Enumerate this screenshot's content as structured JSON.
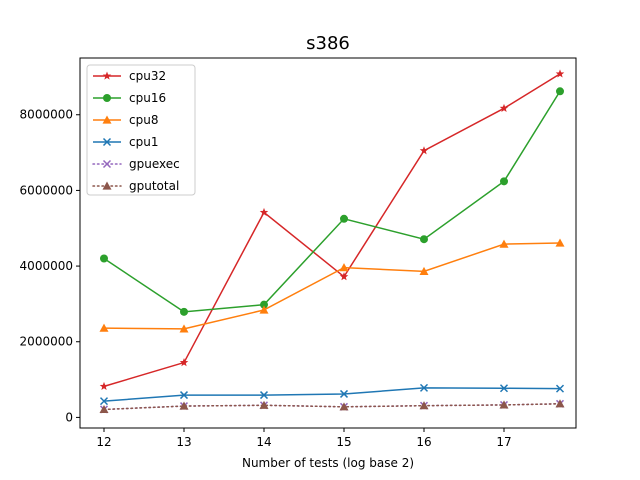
{
  "chart_data": {
    "type": "line",
    "title": "s386",
    "xlabel": "Number of tests (log base 2)",
    "ylabel": "",
    "xlim": [
      11.7,
      17.9
    ],
    "ylim": [
      -280000,
      9500000
    ],
    "xticks": [
      12,
      13,
      14,
      15,
      16,
      17
    ],
    "yticks": [
      0,
      2000000,
      4000000,
      6000000,
      8000000
    ],
    "x": [
      12,
      13,
      14,
      15,
      16,
      17,
      17.7
    ],
    "legend_position": "upper-left",
    "grid": false,
    "series": [
      {
        "name": "cpu32",
        "color": "#d62728",
        "marker": "star",
        "line": "solid",
        "values": [
          820000,
          1450000,
          5420000,
          3720000,
          7050000,
          8170000,
          9080000
        ]
      },
      {
        "name": "cpu16",
        "color": "#2ca02c",
        "marker": "circle",
        "line": "solid",
        "values": [
          4200000,
          2790000,
          2980000,
          5250000,
          4710000,
          6240000,
          8620000
        ]
      },
      {
        "name": "cpu8",
        "color": "#ff7f0e",
        "marker": "triangle",
        "line": "solid",
        "values": [
          2360000,
          2340000,
          2840000,
          3960000,
          3860000,
          4580000,
          4610000
        ]
      },
      {
        "name": "cpu1",
        "color": "#1f77b4",
        "marker": "x",
        "line": "solid",
        "values": [
          430000,
          590000,
          590000,
          620000,
          780000,
          770000,
          760000
        ]
      },
      {
        "name": "gpuexec",
        "color": "#9467bd",
        "marker": "x",
        "line": "dotted",
        "values": [
          210000,
          300000,
          320000,
          280000,
          310000,
          330000,
          360000
        ]
      },
      {
        "name": "gputotal",
        "color": "#8c564b",
        "marker": "triangle",
        "line": "dotted",
        "values": [
          210000,
          300000,
          320000,
          280000,
          310000,
          330000,
          360000
        ]
      }
    ]
  }
}
